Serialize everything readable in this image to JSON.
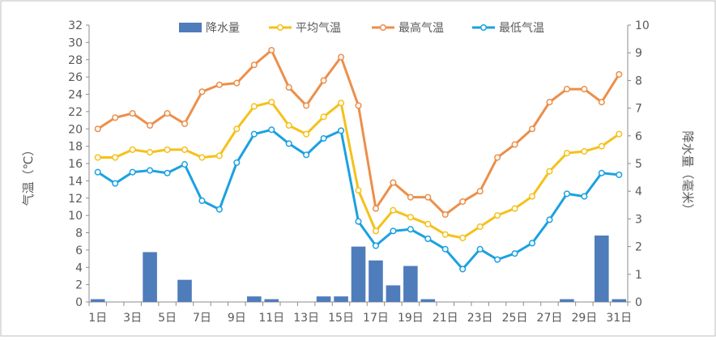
{
  "chart_data": {
    "type": "bar+line",
    "title": "",
    "categories": [
      "1日",
      "2日",
      "3日",
      "4日",
      "5日",
      "6日",
      "7日",
      "8日",
      "9日",
      "10日",
      "11日",
      "12日",
      "13日",
      "14日",
      "15日",
      "16日",
      "17日",
      "18日",
      "19日",
      "20日",
      "21日",
      "22日",
      "23日",
      "24日",
      "25日",
      "26日",
      "27日",
      "28日",
      "29日",
      "30日",
      "31日"
    ],
    "x_tick_labels": [
      "1日",
      "",
      "3日",
      "",
      "5日",
      "",
      "7日",
      "",
      "9日",
      "",
      "11日",
      "",
      "13日",
      "",
      "15日",
      "",
      "17日",
      "",
      "19日",
      "",
      "21日",
      "",
      "23日",
      "",
      "25日",
      "",
      "27日",
      "",
      "29日",
      "",
      "31日"
    ],
    "ylabel_left": "气温（℃）",
    "ylabel_right": "降水量（毫米）",
    "ylim_left": [
      0,
      32
    ],
    "ylim_right": [
      0,
      10
    ],
    "yticks_left": [
      "0",
      "2",
      "4",
      "6",
      "8",
      "10",
      "12",
      "14",
      "16",
      "18",
      "20",
      "22",
      "24",
      "26",
      "28",
      "30",
      "32"
    ],
    "yticks_right": [
      "0",
      "1",
      "2",
      "3",
      "4",
      "5",
      "6",
      "7",
      "8",
      "9",
      "10"
    ],
    "legend_position": "top",
    "series": [
      {
        "name": "降水量",
        "kind": "bar",
        "axis": "right",
        "color": "#4f7cba",
        "values": [
          0.1,
          0,
          0,
          1.8,
          0,
          0.8,
          0,
          0,
          0,
          0.2,
          0.1,
          0,
          0,
          0.2,
          0.2,
          2.0,
          1.5,
          0.6,
          1.3,
          0.1,
          0,
          0,
          0,
          0,
          0,
          0,
          0,
          0.1,
          0,
          2.4,
          0.1
        ]
      },
      {
        "name": "平均气温",
        "kind": "line",
        "axis": "left",
        "color": "#f5c11b",
        "values": [
          16.7,
          16.7,
          17.6,
          17.3,
          17.6,
          17.6,
          16.7,
          16.9,
          20.0,
          22.6,
          23.1,
          20.4,
          19.4,
          21.4,
          23.0,
          12.9,
          8.2,
          10.6,
          9.8,
          9.0,
          7.8,
          7.4,
          8.7,
          10.0,
          10.8,
          12.2,
          15.1,
          17.2,
          17.4,
          18.0,
          19.4
        ]
      },
      {
        "name": "最高气温",
        "kind": "line",
        "axis": "left",
        "color": "#ec8f4a",
        "values": [
          20.0,
          21.3,
          21.8,
          20.4,
          21.8,
          20.6,
          24.3,
          25.1,
          25.3,
          27.4,
          29.1,
          24.8,
          22.7,
          25.6,
          28.3,
          22.7,
          10.8,
          13.8,
          12.1,
          12.1,
          10.1,
          11.6,
          12.8,
          16.7,
          18.2,
          20.0,
          23.1,
          24.6,
          24.6,
          23.1,
          26.3
        ]
      },
      {
        "name": "最低气温",
        "kind": "line",
        "axis": "left",
        "color": "#1ba1e2",
        "values": [
          15.0,
          13.7,
          15.0,
          15.2,
          14.9,
          15.9,
          11.7,
          10.7,
          16.1,
          19.4,
          19.9,
          18.3,
          17.0,
          18.9,
          19.8,
          9.3,
          6.5,
          8.2,
          8.4,
          7.3,
          6.1,
          3.8,
          6.1,
          4.9,
          5.6,
          6.8,
          9.5,
          12.5,
          12.2,
          14.9,
          14.7
        ]
      }
    ]
  }
}
